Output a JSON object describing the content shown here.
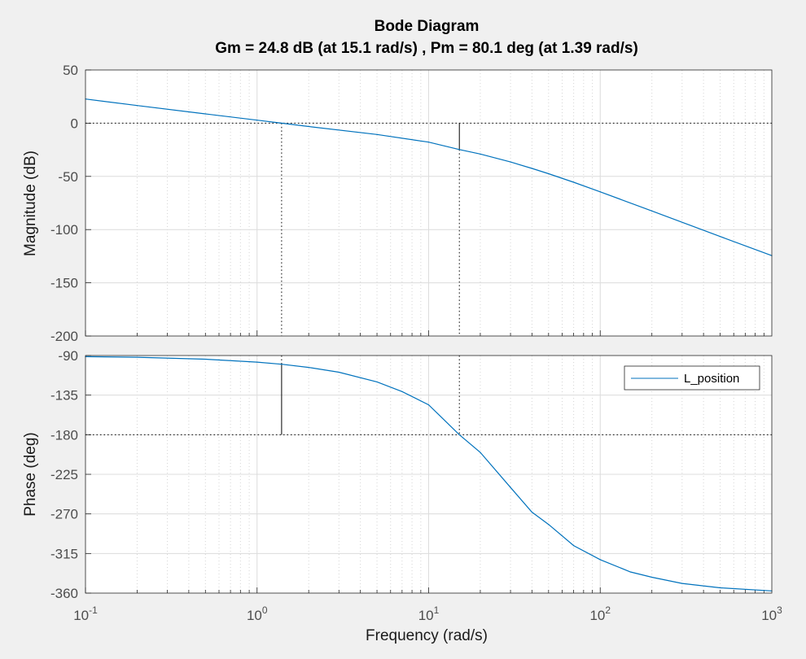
{
  "chart_data": {
    "type": "line",
    "title": "Bode Diagram",
    "subtitle": "Gm = 24.8 dB (at 15.1 rad/s) ,  Pm = 80.1 deg (at 1.39 rad/s)",
    "xlabel": "Frequency  (rad/s)",
    "x_scale": "log",
    "xlim": [
      0.1,
      1000
    ],
    "x_ticks": [
      {
        "base": "10",
        "exp": "-1"
      },
      {
        "base": "10",
        "exp": "0"
      },
      {
        "base": "10",
        "exp": "1"
      },
      {
        "base": "10",
        "exp": "2"
      },
      {
        "base": "10",
        "exp": "3"
      }
    ],
    "grid": true,
    "legend": {
      "position": "top-right",
      "entries": [
        "L_position"
      ]
    },
    "colors": {
      "series": "#0072bd",
      "background": "#f0f0f0",
      "axes": "#ffffff"
    },
    "gain_margin": {
      "value_db": 24.8,
      "frequency": 15.1
    },
    "phase_margin": {
      "value_deg": 80.1,
      "frequency": 1.39
    },
    "panels": [
      {
        "name": "magnitude",
        "ylabel": "Magnitude (dB)",
        "ylim": [
          -200,
          50
        ],
        "yticks": [
          "50",
          "0",
          "-50",
          "-100",
          "-150",
          "-200"
        ],
        "series": [
          {
            "name": "L_position",
            "x": [
              0.1,
              0.2,
              0.5,
              1,
              1.39,
              2,
              5,
              10,
              15.1,
              20,
              30,
              40,
              50,
              70,
              100,
              200,
              500,
              1000
            ],
            "values": [
              22.7,
              16.6,
              8.7,
              2.8,
              0,
              -3.1,
              -10.6,
              -17.8,
              -24.8,
              -29.0,
              -36.5,
              -42.5,
              -47.5,
              -55.5,
              -64.5,
              -82.5,
              -106.5,
              -124.5
            ]
          }
        ]
      },
      {
        "name": "phase",
        "ylabel": "Phase (deg)",
        "ylim": [
          -360,
          -90
        ],
        "yticks": [
          "-90",
          "-135",
          "-180",
          "-225",
          "-270",
          "-315",
          "-360"
        ],
        "series": [
          {
            "name": "L_position",
            "x": [
              0.1,
              0.2,
              0.5,
              1,
              1.39,
              2,
              3,
              5,
              7,
              10,
              15.1,
              20,
              30,
              40,
              50,
              70,
              100,
              150,
              200,
              300,
              500,
              1000
            ],
            "values": [
              -91.3,
              -91.9,
              -94.2,
              -97.5,
              -99.9,
              -103.5,
              -109,
              -120,
              -131,
              -146,
              -180,
              -200,
              -240,
              -268,
              -282,
              -306,
              -322,
              -336,
              -342,
              -349,
              -354,
              -357.5
            ]
          }
        ]
      }
    ]
  }
}
